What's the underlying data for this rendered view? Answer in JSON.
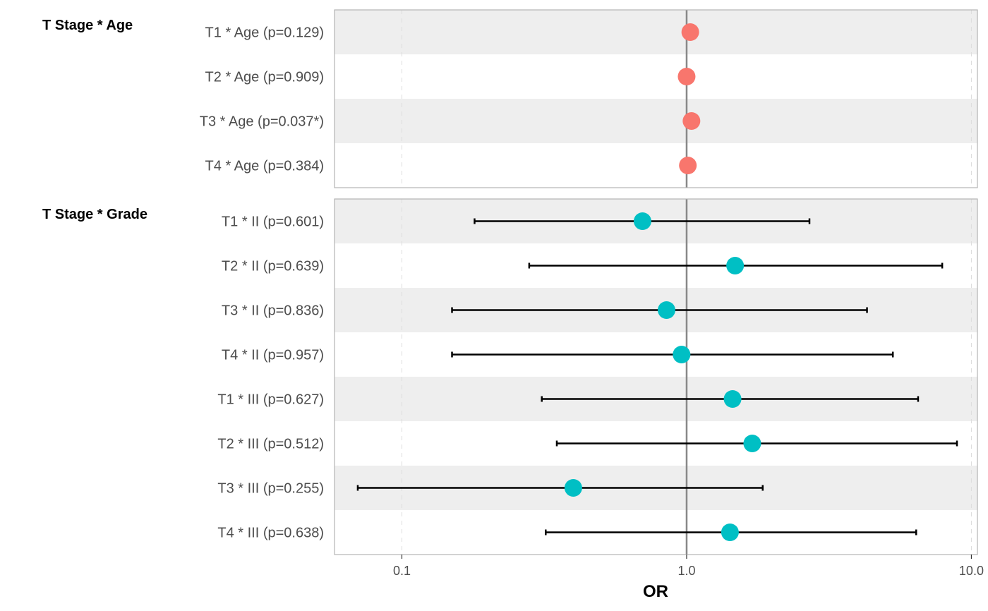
{
  "chart_data": {
    "type": "scatter",
    "xlabel": "OR",
    "xscale": "log10",
    "xlim": [
      0.058,
      10.5
    ],
    "xticks": [
      0.1,
      1.0,
      10.0
    ],
    "xtick_labels": [
      "0.1",
      "1.0",
      "10.0"
    ],
    "reference_line": 1.0,
    "grid": "vertical dashed",
    "legend": "none",
    "colors": {
      "age": "#F8766D",
      "grade": "#00BFC4",
      "band": "#EEEEEE",
      "panel_border": "#B3B3B3"
    },
    "facets": [
      {
        "title": "T Stage * Age",
        "color": "#F8766D",
        "rows": [
          {
            "label": "T1 * Age (p=0.129)",
            "or": 1.03,
            "lo": null,
            "hi": null
          },
          {
            "label": "T2 * Age (p=0.909)",
            "or": 1.0,
            "lo": null,
            "hi": null
          },
          {
            "label": "T3 * Age (p=0.037*)",
            "or": 1.04,
            "lo": null,
            "hi": null
          },
          {
            "label": "T4 * Age (p=0.384)",
            "or": 1.01,
            "lo": null,
            "hi": null
          }
        ]
      },
      {
        "title": "T Stage * Grade",
        "color": "#00BFC4",
        "rows": [
          {
            "label": "T1 * II (p=0.601)",
            "or": 0.7,
            "lo": 0.18,
            "hi": 2.7
          },
          {
            "label": "T2 * II (p=0.639)",
            "or": 1.48,
            "lo": 0.28,
            "hi": 7.9
          },
          {
            "label": "T3 * II (p=0.836)",
            "or": 0.85,
            "lo": 0.15,
            "hi": 4.3
          },
          {
            "label": "T4 * II (p=0.957)",
            "or": 0.96,
            "lo": 0.15,
            "hi": 5.3
          },
          {
            "label": "T1 * III (p=0.627)",
            "or": 1.45,
            "lo": 0.31,
            "hi": 6.5
          },
          {
            "label": "T2 * III (p=0.512)",
            "or": 1.7,
            "lo": 0.35,
            "hi": 8.9
          },
          {
            "label": "T3 * III (p=0.255)",
            "or": 0.4,
            "lo": 0.07,
            "hi": 1.85
          },
          {
            "label": "T4 * III (p=0.638)",
            "or": 1.42,
            "lo": 0.32,
            "hi": 6.4
          }
        ]
      }
    ]
  }
}
